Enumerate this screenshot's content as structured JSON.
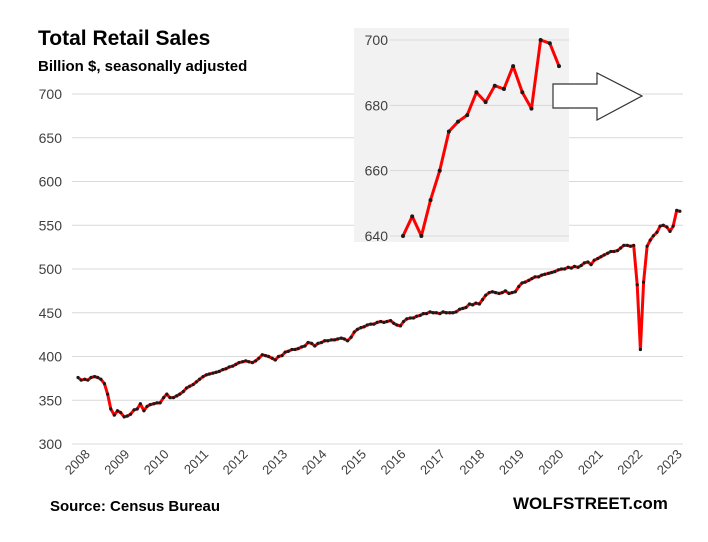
{
  "title": "Total Retail Sales",
  "subtitle": "Billion $, seasonally adjusted",
  "source": "Source: Census Bureau",
  "brand": "WOLFSTREET.com",
  "colors": {
    "line": "#ff0000",
    "marker": "#1a1a1a",
    "grid": "#d9d9d9",
    "inset_bg": "#f2f2f2",
    "axis_text": "#404040"
  },
  "chart_data": [
    {
      "type": "line",
      "title": "Total Retail Sales",
      "subtitle": "Billion $, seasonally adjusted",
      "ylim": [
        300,
        700
      ],
      "xlim": [
        2008,
        2023.4
      ],
      "yticks": [
        300,
        350,
        400,
        450,
        500,
        550,
        600,
        650,
        700
      ],
      "xticks": [
        "2008",
        "2009",
        "2010",
        "2011",
        "2012",
        "2013",
        "2014",
        "2015",
        "2016",
        "2017",
        "2018",
        "2019",
        "2020",
        "2021",
        "2022",
        "2023"
      ],
      "grid": "horizontal",
      "series": [
        {
          "points": [
            [
              2008.0,
              376
            ],
            [
              2008.08,
              373
            ],
            [
              2008.17,
              374
            ],
            [
              2008.25,
              373
            ],
            [
              2008.33,
              376
            ],
            [
              2008.42,
              377
            ],
            [
              2008.5,
              376
            ],
            [
              2008.58,
              374
            ],
            [
              2008.67,
              369
            ],
            [
              2008.75,
              357
            ],
            [
              2008.83,
              340
            ],
            [
              2008.92,
              333
            ],
            [
              2009.0,
              338
            ],
            [
              2009.08,
              336
            ],
            [
              2009.17,
              331
            ],
            [
              2009.25,
              332
            ],
            [
              2009.33,
              334
            ],
            [
              2009.42,
              339
            ],
            [
              2009.5,
              340
            ],
            [
              2009.58,
              346
            ],
            [
              2009.67,
              338
            ],
            [
              2009.75,
              343
            ],
            [
              2009.83,
              345
            ],
            [
              2009.92,
              346
            ],
            [
              2010.0,
              347
            ],
            [
              2010.08,
              347
            ],
            [
              2010.17,
              353
            ],
            [
              2010.25,
              357
            ],
            [
              2010.33,
              353
            ],
            [
              2010.42,
              353
            ],
            [
              2010.5,
              355
            ],
            [
              2010.58,
              357
            ],
            [
              2010.67,
              360
            ],
            [
              2010.75,
              364
            ],
            [
              2010.83,
              366
            ],
            [
              2010.92,
              368
            ],
            [
              2011.0,
              371
            ],
            [
              2011.08,
              374
            ],
            [
              2011.17,
              377
            ],
            [
              2011.25,
              379
            ],
            [
              2011.33,
              380
            ],
            [
              2011.42,
              381
            ],
            [
              2011.5,
              382
            ],
            [
              2011.58,
              383
            ],
            [
              2011.67,
              385
            ],
            [
              2011.75,
              386
            ],
            [
              2011.83,
              388
            ],
            [
              2011.92,
              389
            ],
            [
              2012.0,
              391
            ],
            [
              2012.08,
              393
            ],
            [
              2012.17,
              394
            ],
            [
              2012.25,
              395
            ],
            [
              2012.33,
              394
            ],
            [
              2012.42,
              393
            ],
            [
              2012.5,
              395
            ],
            [
              2012.58,
              398
            ],
            [
              2012.67,
              402
            ],
            [
              2012.75,
              401
            ],
            [
              2012.83,
              400
            ],
            [
              2012.92,
              398
            ],
            [
              2013.0,
              396
            ],
            [
              2013.08,
              400
            ],
            [
              2013.17,
              401
            ],
            [
              2013.25,
              405
            ],
            [
              2013.33,
              406
            ],
            [
              2013.42,
              408
            ],
            [
              2013.5,
              408
            ],
            [
              2013.58,
              409
            ],
            [
              2013.67,
              411
            ],
            [
              2013.75,
              412
            ],
            [
              2013.83,
              416
            ],
            [
              2013.92,
              415
            ],
            [
              2014.0,
              412
            ],
            [
              2014.08,
              415
            ],
            [
              2014.17,
              416
            ],
            [
              2014.25,
              418
            ],
            [
              2014.33,
              418
            ],
            [
              2014.42,
              419
            ],
            [
              2014.5,
              419
            ],
            [
              2014.58,
              420
            ],
            [
              2014.67,
              421
            ],
            [
              2014.75,
              420
            ],
            [
              2014.83,
              418
            ],
            [
              2014.92,
              422
            ],
            [
              2015.0,
              428
            ],
            [
              2015.08,
              431
            ],
            [
              2015.17,
              433
            ],
            [
              2015.25,
              434
            ],
            [
              2015.33,
              436
            ],
            [
              2015.42,
              437
            ],
            [
              2015.5,
              437
            ],
            [
              2015.58,
              439
            ],
            [
              2015.67,
              440
            ],
            [
              2015.75,
              439
            ],
            [
              2015.83,
              440
            ],
            [
              2015.92,
              441
            ],
            [
              2016.0,
              438
            ],
            [
              2016.08,
              436
            ],
            [
              2016.17,
              435
            ],
            [
              2016.25,
              440
            ],
            [
              2016.33,
              443
            ],
            [
              2016.42,
              444
            ],
            [
              2016.5,
              444
            ],
            [
              2016.58,
              446
            ],
            [
              2016.67,
              447
            ],
            [
              2016.75,
              449
            ],
            [
              2016.83,
              449
            ],
            [
              2016.92,
              451
            ],
            [
              2017.0,
              450
            ],
            [
              2017.08,
              450
            ],
            [
              2017.17,
              449
            ],
            [
              2017.25,
              451
            ],
            [
              2017.33,
              450
            ],
            [
              2017.42,
              450
            ],
            [
              2017.5,
              450
            ],
            [
              2017.58,
              451
            ],
            [
              2017.67,
              454
            ],
            [
              2017.75,
              455
            ],
            [
              2017.83,
              456
            ],
            [
              2017.92,
              460
            ],
            [
              2018.0,
              459
            ],
            [
              2018.08,
              461
            ],
            [
              2018.17,
              460
            ],
            [
              2018.25,
              465
            ],
            [
              2018.33,
              470
            ],
            [
              2018.42,
              473
            ],
            [
              2018.5,
              474
            ],
            [
              2018.58,
              473
            ],
            [
              2018.67,
              472
            ],
            [
              2018.75,
              473
            ],
            [
              2018.83,
              475
            ],
            [
              2018.92,
              472
            ],
            [
              2019.0,
              473
            ],
            [
              2019.08,
              474
            ],
            [
              2019.17,
              480
            ],
            [
              2019.25,
              484
            ],
            [
              2019.33,
              485
            ],
            [
              2019.42,
              487
            ],
            [
              2019.5,
              489
            ],
            [
              2019.58,
              491
            ],
            [
              2019.67,
              491
            ],
            [
              2019.75,
              493
            ],
            [
              2019.83,
              494
            ],
            [
              2019.92,
              495
            ],
            [
              2020.0,
              496
            ],
            [
              2020.08,
              497
            ],
            [
              2020.17,
              499
            ],
            [
              2020.25,
              500
            ],
            [
              2020.33,
              500
            ],
            [
              2020.42,
              502
            ],
            [
              2020.5,
              501
            ],
            [
              2020.58,
              503
            ],
            [
              2020.67,
              502
            ],
            [
              2020.75,
              504
            ],
            [
              2020.83,
              507
            ],
            [
              2020.92,
              508
            ],
            [
              2021.0,
              505
            ],
            [
              2021.08,
              510
            ],
            [
              2021.17,
              512
            ],
            [
              2021.25,
              514
            ],
            [
              2021.33,
              516
            ],
            [
              2021.42,
              518
            ],
            [
              2021.5,
              520
            ],
            [
              2021.58,
              520
            ],
            [
              2021.67,
              521
            ],
            [
              2021.75,
              524
            ],
            [
              2021.83,
              527
            ],
            [
              2021.92,
              527
            ],
            [
              2022.0,
              526
            ],
            [
              2022.08,
              527
            ],
            [
              2022.17,
              482
            ],
            [
              2022.25,
              408
            ],
            [
              2022.33,
              485
            ],
            [
              2022.42,
              526
            ],
            [
              2022.5,
              533
            ],
            [
              2022.58,
              538
            ],
            [
              2022.67,
              542
            ],
            [
              2022.75,
              549
            ],
            [
              2022.83,
              550
            ],
            [
              2022.92,
              548
            ],
            [
              2023.0,
              543
            ],
            [
              2023.08,
              549
            ],
            [
              2023.17,
              567
            ],
            [
              2023.25,
              566
            ]
          ]
        }
      ]
    },
    {
      "type": "line",
      "ylim": [
        640,
        700
      ],
      "yticks": [
        640,
        660,
        680,
        700
      ],
      "grid": "horizontal",
      "series": [
        {
          "values": [
            640,
            646,
            640,
            651,
            660,
            672,
            675,
            677,
            684,
            681,
            686,
            685,
            692,
            684,
            679,
            700,
            699,
            692
          ]
        }
      ]
    }
  ]
}
